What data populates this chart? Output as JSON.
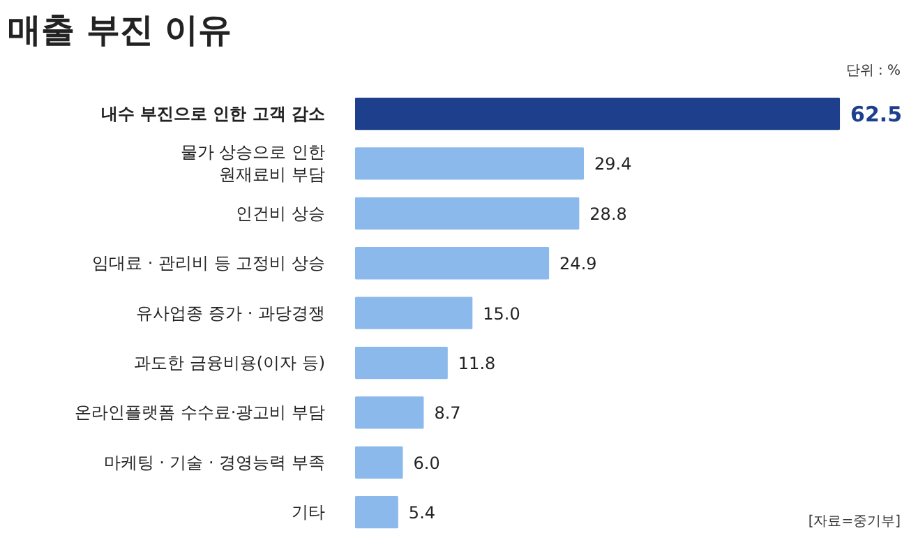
{
  "chart_data": {
    "type": "bar",
    "orientation": "horizontal",
    "title": "매출 부진 이유",
    "categories": [
      "내수 부진으로 인한 고객 감소",
      "물가 상승으로 인한\n원재료비 부담",
      "인건비 상승",
      "임대료 · 관리비 등 고정비 상승",
      "유사업종 증가 · 과당경쟁",
      "과도한 금융비용(이자 등)",
      "온라인플랫폼 수수료·광고비 부담",
      "마케팅 · 기술 · 경영능력 부족",
      "기타"
    ],
    "values": [
      62.5,
      29.4,
      28.8,
      24.9,
      15.0,
      11.8,
      8.7,
      6.0,
      5.4
    ],
    "value_labels": [
      "62.5",
      "29.4",
      "28.8",
      "24.9",
      "15.0",
      "11.8",
      "8.7",
      "6.0",
      "5.4"
    ],
    "colors": [
      "#1d3f8c",
      "#8cb9ec",
      "#8cb9ec",
      "#8cb9ec",
      "#8cb9ec",
      "#8cb9ec",
      "#8cb9ec",
      "#8cb9ec",
      "#8cb9ec"
    ],
    "annotations": [
      "단위 : %",
      "[자료=중기부]"
    ],
    "grid": false
  }
}
